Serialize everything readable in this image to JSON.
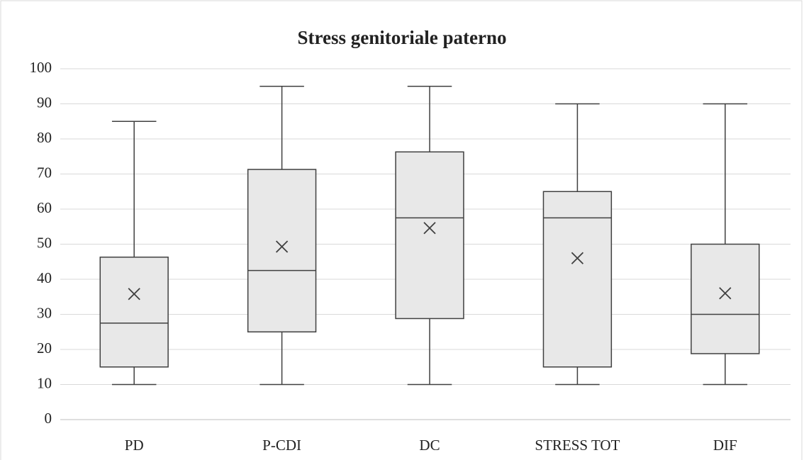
{
  "chart_data": {
    "type": "box",
    "title": "Stress genitoriale paterno",
    "categories": [
      "PD",
      "P-CDI",
      "DC",
      "STRESS TOT",
      "DIF"
    ],
    "min": [
      10,
      10,
      10,
      10,
      10
    ],
    "q1": [
      15,
      25,
      28.8,
      15,
      18.8
    ],
    "median": [
      27.5,
      42.5,
      57.5,
      57.5,
      30
    ],
    "q3": [
      46.3,
      71.3,
      76.3,
      65,
      50
    ],
    "max": [
      85,
      95,
      95,
      90,
      90
    ],
    "mean": [
      35.8,
      49.3,
      54.6,
      46,
      36
    ],
    "color": "#e8e8e8",
    "line_color": "#404040",
    "ylim": [
      0,
      100
    ],
    "yticks": [
      0,
      10,
      20,
      30,
      40,
      50,
      60,
      70,
      80,
      90,
      100
    ],
    "grid": true
  }
}
